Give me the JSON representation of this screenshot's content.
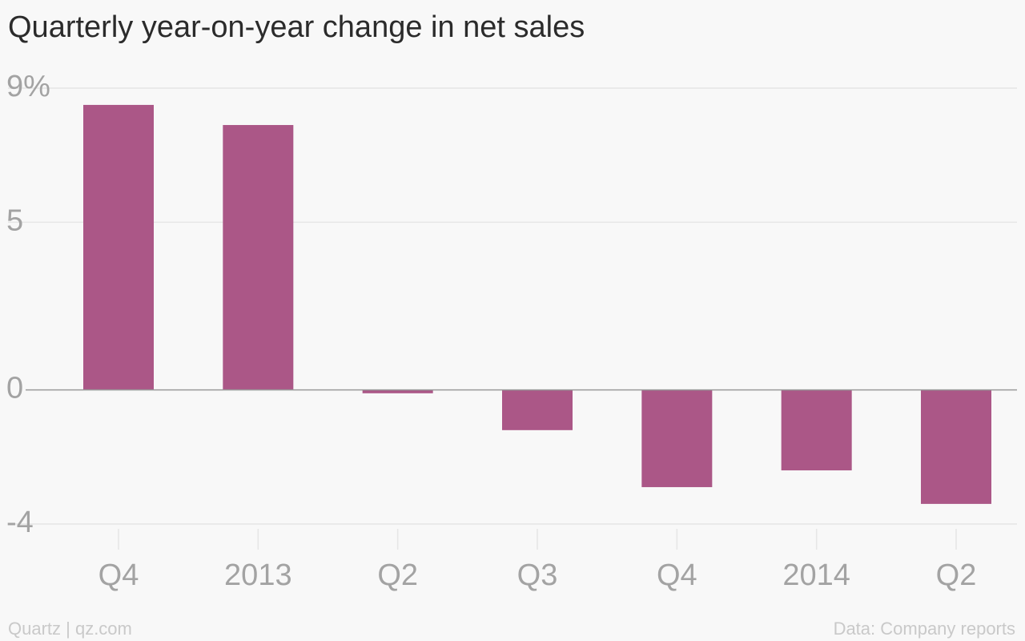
{
  "title": "Quarterly year-on-year change in net sales",
  "footer": {
    "credit": "Quartz | qz.com",
    "source": "Data: Company reports"
  },
  "colors": {
    "bar": "#ab5787",
    "grid": "#e6e6e6",
    "zero_line": "#9a9a9a",
    "tick_text": "#a3a3a3",
    "title_text": "#2b2b2b",
    "footer_text": "#c9c9c9",
    "background": "#f8f8f8"
  },
  "chart_data": {
    "type": "bar",
    "title": "Quarterly year-on-year change in net sales",
    "categories": [
      "Q4",
      "2013",
      "Q2",
      "Q3",
      "Q4",
      "2014",
      "Q2"
    ],
    "values": [
      8.5,
      7.9,
      -0.1,
      -1.2,
      -2.9,
      -2.4,
      -3.4
    ],
    "xlabel": "",
    "ylabel": "",
    "ylim": [
      -4,
      9
    ],
    "yticks": [
      -4,
      0,
      5,
      9
    ],
    "ytick_labels": [
      "-4",
      "0",
      "5",
      "9%"
    ],
    "grid": true,
    "legend": "none"
  }
}
